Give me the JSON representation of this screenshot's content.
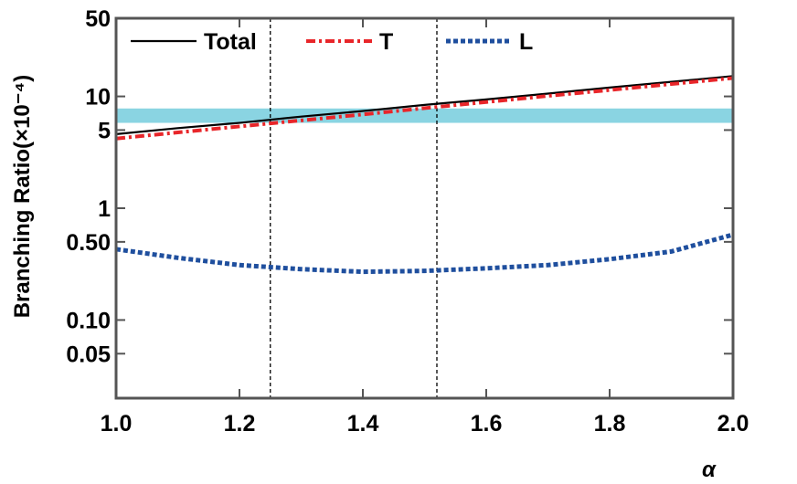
{
  "chart_data": {
    "type": "line",
    "x": [
      1.0,
      1.1,
      1.2,
      1.3,
      1.4,
      1.5,
      1.6,
      1.7,
      1.8,
      1.9,
      2.0
    ],
    "series": [
      {
        "name": "Total",
        "color": "#000000",
        "style": "solid",
        "values": [
          4.6,
          5.2,
          5.8,
          6.6,
          7.4,
          8.4,
          9.4,
          10.6,
          12.0,
          13.5,
          15.2
        ]
      },
      {
        "name": "T",
        "color": "#e8262a",
        "style": "dashdot",
        "values": [
          4.2,
          4.76,
          5.39,
          6.1,
          6.9,
          7.85,
          8.9,
          10.1,
          11.4,
          12.9,
          14.6
        ]
      },
      {
        "name": "L",
        "color": "#1f4f9e",
        "style": "dotted",
        "values": [
          0.43,
          0.36,
          0.31,
          0.285,
          0.27,
          0.275,
          0.29,
          0.31,
          0.35,
          0.41,
          0.58
        ]
      }
    ],
    "xlabel": "α",
    "ylabel": "Branching Ratio(×10⁻⁴)",
    "xlim": [
      1.0,
      2.0
    ],
    "xticks": [
      {
        "value": 1.0,
        "label": "1.0"
      },
      1.2,
      1.4,
      1.6,
      1.8,
      {
        "value": 2.0,
        "label": "2.0"
      }
    ],
    "ylim": [
      0.02,
      50
    ],
    "yscale": "log",
    "yticks": [
      0.05,
      {
        "value": 0.1,
        "label": "0.10"
      },
      {
        "value": 0.5,
        "label": "0.50"
      },
      1,
      5,
      10,
      50
    ],
    "band": {
      "range": [
        5.8,
        7.8
      ],
      "color": "#8ad4e2"
    },
    "vlines": [
      1.25,
      1.52
    ],
    "legend": "top"
  }
}
